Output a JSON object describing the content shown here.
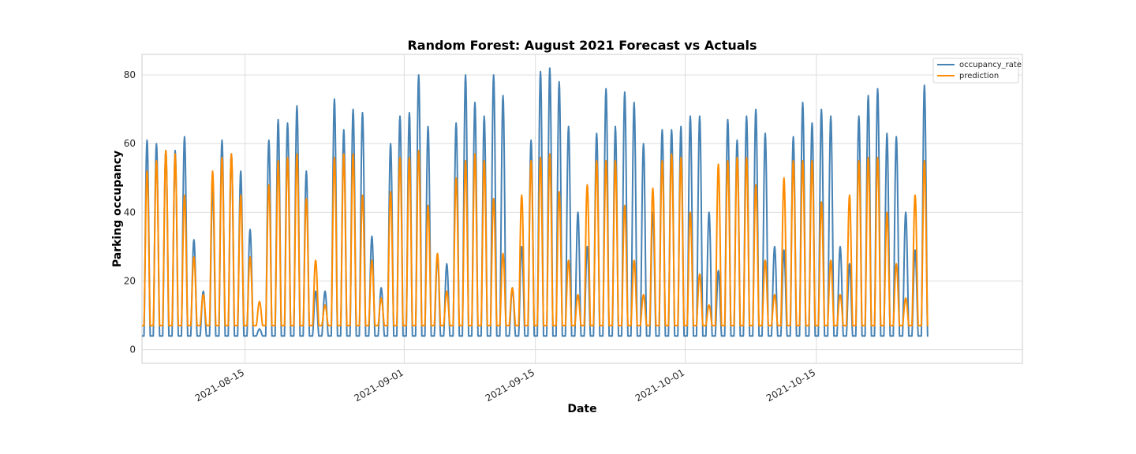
{
  "chart_data": {
    "type": "line",
    "title": "Random Forest: August 2021 Forecast vs Actuals",
    "xlabel": "Date",
    "ylabel": "Parking occupancy",
    "xlim": [
      "2021-08-04",
      "2021-11-06"
    ],
    "ylim": [
      -4,
      86
    ],
    "x_ticks": [
      "2021-08-15",
      "2021-09-01",
      "2021-09-15",
      "2021-10-01",
      "2021-10-15"
    ],
    "y_ticks": [
      0,
      20,
      40,
      60,
      80
    ],
    "grid": true,
    "legend": "upper-right",
    "x_start": "2021-08-04",
    "x_end": "2021-10-29",
    "series": [
      {
        "name": "occupancy_rate",
        "color": "#4682b4",
        "daily_peaks": [
          61,
          60,
          58,
          58,
          62,
          32,
          17,
          47,
          61,
          57,
          52,
          35,
          6,
          61,
          67,
          66,
          71,
          52,
          17,
          17,
          73,
          64,
          70,
          69,
          33,
          18,
          60,
          68,
          69,
          80,
          65,
          27,
          25,
          66,
          80,
          72,
          68,
          80,
          74,
          18,
          30,
          61,
          81,
          82,
          78,
          65,
          40,
          30,
          63,
          76,
          65,
          75,
          72,
          60,
          40,
          64,
          64,
          65,
          68,
          68,
          40,
          23,
          67,
          61,
          68,
          70,
          63,
          30,
          29,
          62,
          72,
          66,
          70,
          68,
          30,
          25,
          68,
          74,
          76,
          63,
          62,
          40,
          29,
          77
        ]
      },
      {
        "name": "prediction",
        "color": "#ff8c00",
        "daily_peaks": [
          52,
          55,
          58,
          57,
          45,
          27,
          16,
          52,
          56,
          57,
          45,
          27,
          14,
          48,
          55,
          56,
          57,
          44,
          26,
          13,
          56,
          57,
          57,
          45,
          26,
          15,
          46,
          56,
          56,
          58,
          42,
          28,
          17,
          50,
          55,
          57,
          55,
          44,
          28,
          18,
          45,
          55,
          56,
          57,
          46,
          26,
          16,
          48,
          55,
          55,
          55,
          42,
          26,
          16,
          47,
          55,
          57,
          56,
          40,
          22,
          13,
          54,
          55,
          56,
          56,
          48,
          26,
          16,
          50,
          55,
          55,
          55,
          43,
          26,
          16,
          45,
          55,
          56,
          56,
          40,
          25,
          15,
          45,
          55
        ]
      }
    ]
  }
}
